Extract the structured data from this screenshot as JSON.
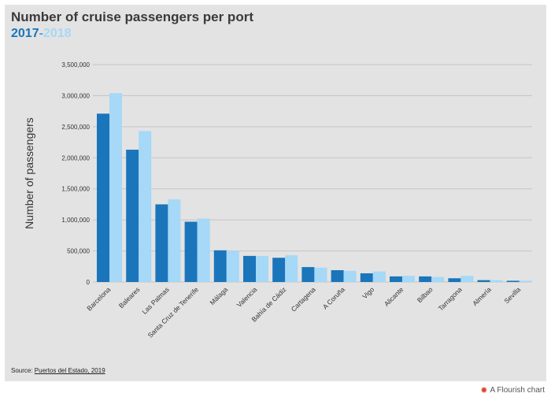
{
  "header": {
    "title": "Number of cruise passengers per port",
    "subtitle_year1": "2017",
    "subtitle_sep": "-",
    "subtitle_year2": "2018"
  },
  "footer": {
    "source_prefix": "Source: ",
    "source_link": "Puertos del Estado, 2019",
    "flourish_label": "A Flourish chart"
  },
  "colors": {
    "series_2017": "#1a75bb",
    "series_2018": "#a6d8f7",
    "grid": "#c4c4c4",
    "background": "#e3e3e3"
  },
  "chart_data": {
    "type": "bar",
    "title": "Number of cruise passengers per port",
    "ylabel": "Number of passengers",
    "xlabel": "",
    "ylim": [
      0,
      3500000
    ],
    "yticks": [
      0,
      500000,
      1000000,
      1500000,
      2000000,
      2500000,
      3000000,
      3500000
    ],
    "ytick_labels": [
      "0",
      "500,000",
      "1,000,000",
      "1,500,000",
      "2,000,000",
      "2,500,000",
      "3,000,000",
      "3,500,000"
    ],
    "grid": true,
    "categories": [
      "Barcelona",
      "Baleares",
      "Las Palmas",
      "Santa Cruz de Tenerife",
      "Málaga",
      "Valencia",
      "Bahía de Cádiz",
      "Cartagena",
      "A Coruña",
      "Vigo",
      "Alicante",
      "Bilbao",
      "Tarragona",
      "Almería",
      "Sevilla"
    ],
    "series": [
      {
        "name": "2017",
        "values": [
          2710000,
          2130000,
          1250000,
          970000,
          510000,
          420000,
          390000,
          240000,
          190000,
          140000,
          90000,
          90000,
          60000,
          30000,
          20000
        ]
      },
      {
        "name": "2018",
        "values": [
          3040000,
          2430000,
          1330000,
          1020000,
          500000,
          420000,
          430000,
          230000,
          180000,
          170000,
          100000,
          80000,
          100000,
          30000,
          20000
        ]
      }
    ]
  }
}
